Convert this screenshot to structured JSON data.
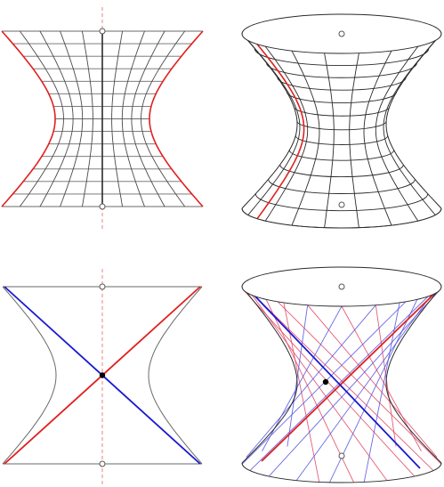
{
  "figure": {
    "description_visible_text": "",
    "panels": [
      {
        "id": "panel-top-left",
        "kind": "profile-grid",
        "profile_curve_color": "#e02020",
        "axis_color": "#2a2a2a",
        "axis_line_style": "dashed",
        "grid_color": "#5a5a5a"
      },
      {
        "id": "panel-top-right",
        "kind": "hyperboloid-grid",
        "profile_curve_color": "#e02020",
        "grid_color": "#2a2a2a"
      },
      {
        "id": "panel-bottom-left",
        "kind": "profile-lines",
        "line_a_color": "#e02020",
        "line_b_color": "#1a1ad0",
        "outline_color": "#6a6a6a"
      },
      {
        "id": "panel-bottom-right",
        "kind": "hyperboloid-ruled",
        "ruling_a_color": "#e04060",
        "ruling_b_color": "#5050e0",
        "highlight_a_color": "#e02020",
        "highlight_b_color": "#1a1ad0"
      }
    ],
    "palette": {
      "red": "#e02020",
      "blue": "#1a1ad0",
      "pink": "#f08080",
      "dark": "#2a2a2a",
      "grey": "#8a8a8a"
    }
  }
}
